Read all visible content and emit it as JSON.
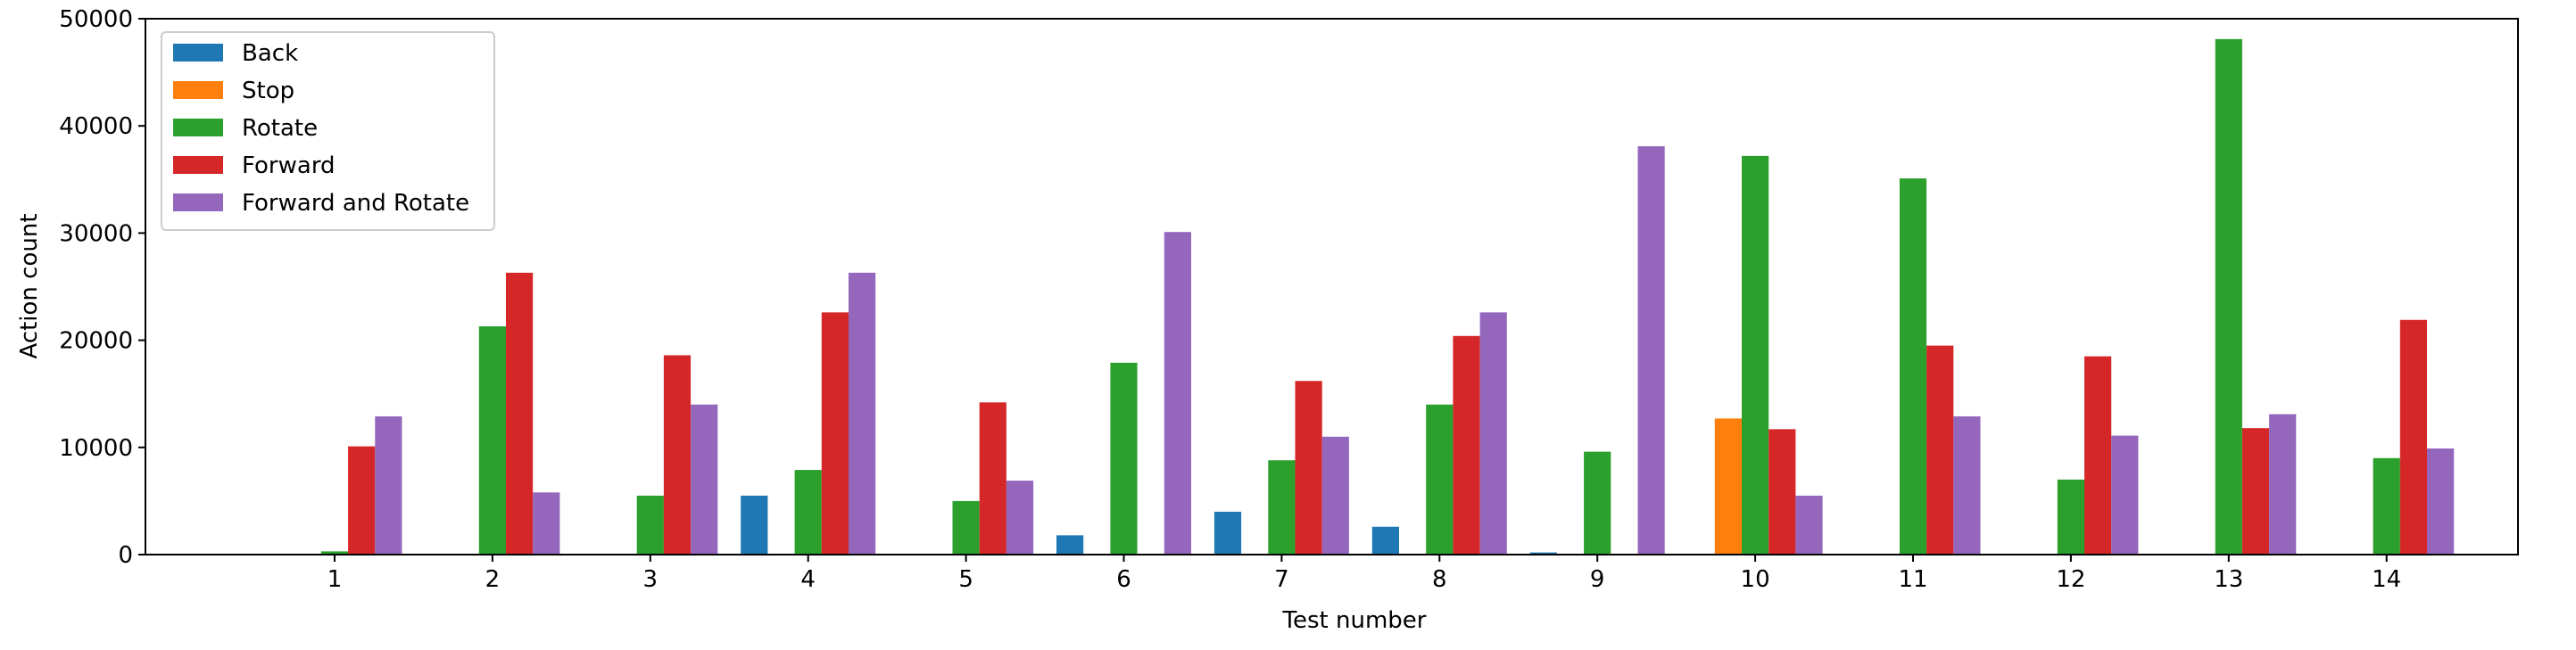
{
  "chart_data": {
    "type": "bar",
    "title": "",
    "xlabel": "Test number",
    "ylabel": "Action count",
    "ylim": [
      0,
      50000
    ],
    "yticks": [
      0,
      10000,
      20000,
      30000,
      40000,
      50000
    ],
    "categories": [
      "1",
      "2",
      "3",
      "4",
      "5",
      "6",
      "7",
      "8",
      "9",
      "10",
      "11",
      "12",
      "13",
      "14"
    ],
    "legend_position": "top-left",
    "grid": false,
    "series": [
      {
        "name": "Back",
        "color": "#1f77b4",
        "values": [
          0,
          0,
          0,
          5500,
          0,
          1800,
          4000,
          2600,
          200,
          0,
          0,
          0,
          0,
          0
        ]
      },
      {
        "name": "Stop",
        "color": "#ff7f0e",
        "values": [
          0,
          0,
          0,
          0,
          0,
          0,
          0,
          0,
          0,
          12700,
          0,
          0,
          0,
          0
        ]
      },
      {
        "name": "Rotate",
        "color": "#2ca02c",
        "values": [
          300,
          21300,
          5500,
          7900,
          5000,
          17900,
          8800,
          14000,
          9600,
          37200,
          35100,
          7000,
          48100,
          9000
        ]
      },
      {
        "name": "Forward",
        "color": "#d62728",
        "values": [
          10100,
          26300,
          18600,
          22600,
          14200,
          0,
          16200,
          20400,
          0,
          11700,
          19500,
          18500,
          11800,
          21900
        ]
      },
      {
        "name": "Forward and Rotate",
        "color": "#9467bd",
        "values": [
          12900,
          5800,
          14000,
          26300,
          6900,
          30100,
          11000,
          22600,
          38100,
          5500,
          12900,
          11100,
          13100,
          9900
        ]
      }
    ]
  }
}
